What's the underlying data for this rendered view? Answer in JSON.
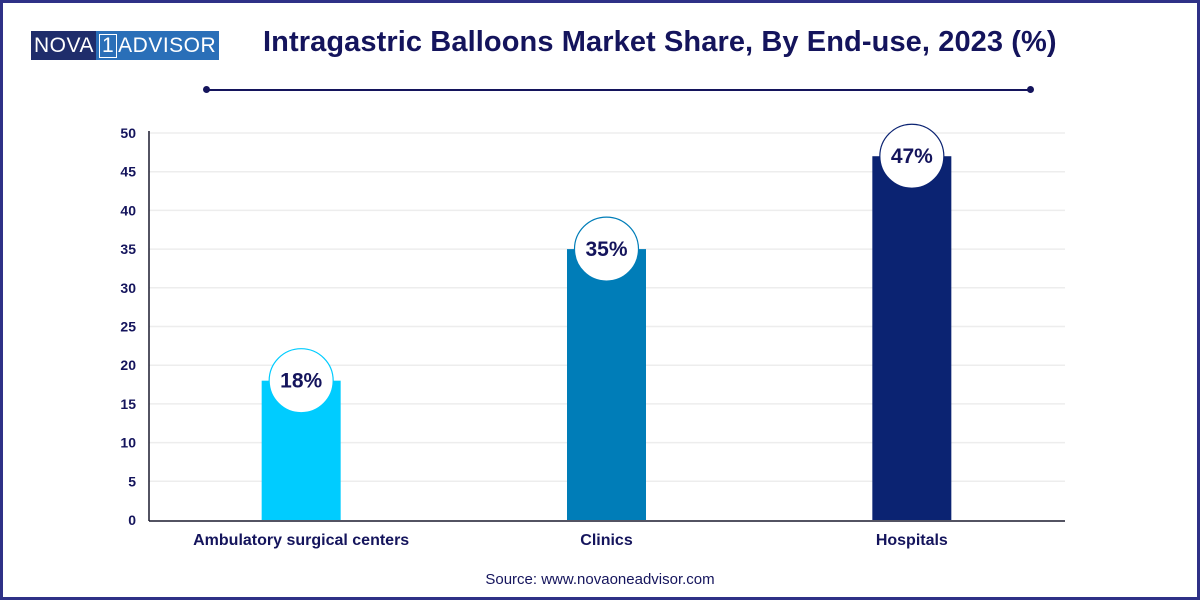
{
  "header": {
    "logo": {
      "part1": "NOVA",
      "digit": "1",
      "part2": "ADVISOR"
    },
    "title": "Intragastric Balloons Market Share, By End-use, 2023 (%)"
  },
  "footer": {
    "source": "Source: www.novaoneadvisor.com"
  },
  "chart_data": {
    "type": "bar",
    "title": "Intragastric Balloons Market Share, By End-use, 2023 (%)",
    "xlabel": "",
    "ylabel": "",
    "categories": [
      "Ambulatory surgical centers",
      "Clinics",
      "Hospitals"
    ],
    "values": [
      18,
      35,
      47
    ],
    "value_labels": [
      "18%",
      "35%",
      "47%"
    ],
    "colors": [
      "#00ccff",
      "#007db8",
      "#0b2372"
    ],
    "ylim": [
      0,
      50
    ],
    "yticks": [
      0,
      5,
      10,
      15,
      20,
      25,
      30,
      35,
      40,
      45,
      50
    ],
    "grid": true,
    "legend": "none"
  }
}
